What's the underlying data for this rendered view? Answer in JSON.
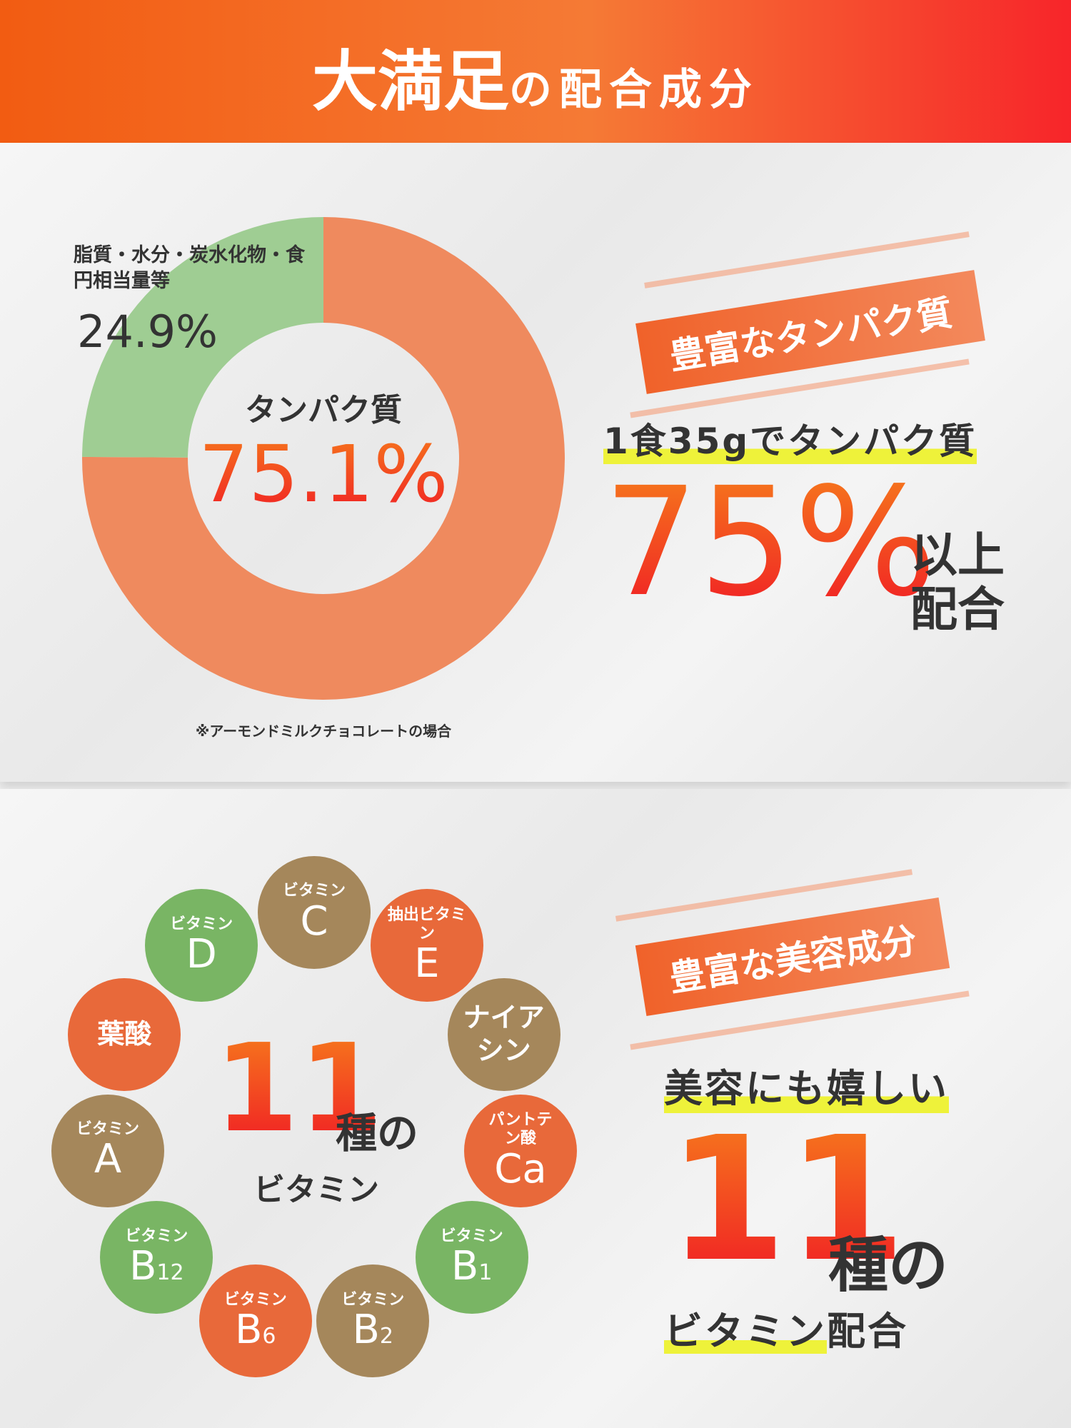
{
  "header": {
    "title_main": "大満足",
    "title_sub": "の配合成分"
  },
  "chart_data": {
    "type": "donut",
    "categories": [
      "タンパク質",
      "脂質・水分・炭水化物・食円相当量等"
    ],
    "values": [
      75.1,
      24.9
    ],
    "value_labels": [
      "75.1%",
      "24.9%"
    ],
    "colors": [
      "#ef8a5e",
      "#9fcd93"
    ],
    "note": "※アーモンドミルクチョコレートの場合"
  },
  "protein": {
    "banner": "豊富なタンパク質",
    "line": "1食35gでタンパク質",
    "big": "75%",
    "suffix_1": "以上",
    "suffix_2": "配合"
  },
  "vitamin_ring": {
    "count": "11",
    "unit": "種の",
    "label": "ビタミン",
    "items": [
      {
        "small": "ビタミン",
        "big": "C",
        "color": "#a5875b"
      },
      {
        "small": "抽出ビタミン",
        "big": "E",
        "color": "#e8693a"
      },
      {
        "label": "ナイアシン",
        "color": "#a5875b"
      },
      {
        "small": "パントテン酸",
        "big": "Ca",
        "color": "#e8693a"
      },
      {
        "small": "ビタミン",
        "big": "B",
        "sub": "1",
        "color": "#79b564"
      },
      {
        "small": "ビタミン",
        "big": "B",
        "sub": "2",
        "color": "#a5875b"
      },
      {
        "small": "ビタミン",
        "big": "B",
        "sub": "6",
        "color": "#e8693a"
      },
      {
        "small": "ビタミン",
        "big": "B",
        "sub": "12",
        "color": "#79b564"
      },
      {
        "small": "ビタミン",
        "big": "A",
        "color": "#a5875b"
      },
      {
        "label": "葉酸",
        "color": "#e8693a"
      },
      {
        "small": "ビタミン",
        "big": "D",
        "color": "#79b564"
      }
    ]
  },
  "beauty": {
    "banner": "豊富な美容成分",
    "line": "美容にも嬉しい",
    "count": "11",
    "unit": "種の",
    "vitamin": "ビタミン",
    "suffix": "配合"
  }
}
